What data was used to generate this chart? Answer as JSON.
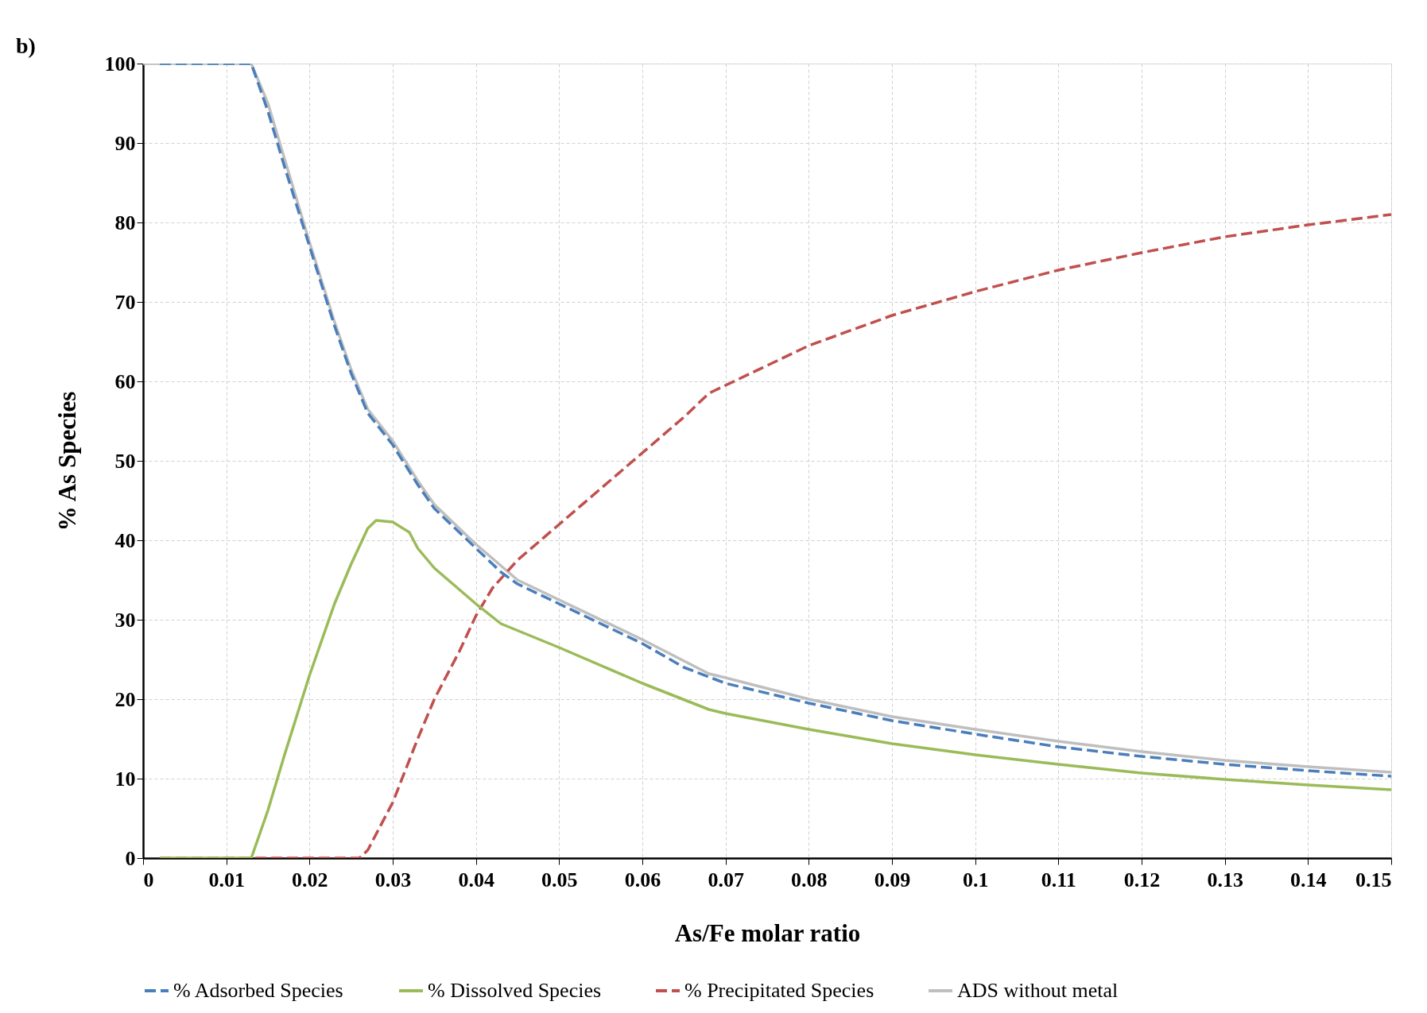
{
  "chart_data": {
    "type": "line",
    "xlabel": "As/Fe molar ratio",
    "ylabel": "% As Species",
    "annotations": [
      "b)"
    ],
    "xlim": [
      0,
      0.15
    ],
    "ylim": [
      0,
      100
    ],
    "xticks": [
      0,
      0.01,
      0.02,
      0.03,
      0.04,
      0.05,
      0.06,
      0.07,
      0.08,
      0.09,
      0.1,
      0.11,
      0.12,
      0.13,
      0.14,
      0.15
    ],
    "yticks": [
      0,
      10,
      20,
      30,
      40,
      50,
      60,
      70,
      80,
      90,
      100
    ],
    "grid": true,
    "legend": "bottom",
    "marker": "none",
    "series": [
      {
        "name": "% Adsorbed Species",
        "color": "#4a7ebb",
        "line_style": "dashed",
        "x": [
          0.002,
          0.013,
          0.015,
          0.017,
          0.02,
          0.023,
          0.025,
          0.027,
          0.03,
          0.033,
          0.035,
          0.04,
          0.043,
          0.045,
          0.05,
          0.055,
          0.06,
          0.065,
          0.07,
          0.08,
          0.09,
          0.1,
          0.11,
          0.12,
          0.13,
          0.14,
          0.15
        ],
        "values": [
          100,
          100,
          94,
          87,
          77,
          67,
          61,
          56,
          52,
          47,
          44,
          39,
          36,
          34.5,
          32,
          29.5,
          27,
          24,
          22,
          19.5,
          17.3,
          15.6,
          14,
          12.8,
          11.8,
          11,
          10.3
        ]
      },
      {
        "name": "% Dissolved Species",
        "color": "#9bbb59",
        "line_style": "solid",
        "x": [
          0.002,
          0.013,
          0.015,
          0.017,
          0.02,
          0.023,
          0.025,
          0.027,
          0.028,
          0.03,
          0.032,
          0.033,
          0.035,
          0.04,
          0.043,
          0.05,
          0.06,
          0.068,
          0.07,
          0.08,
          0.09,
          0.1,
          0.11,
          0.12,
          0.13,
          0.14,
          0.15
        ],
        "values": [
          0,
          0,
          6,
          13,
          23,
          32,
          37,
          41.5,
          42.5,
          42.3,
          41,
          39,
          36.5,
          32,
          29.5,
          26.5,
          22,
          18.7,
          18.2,
          16.2,
          14.4,
          13,
          11.8,
          10.7,
          9.9,
          9.2,
          8.6
        ]
      },
      {
        "name": "% Precipitated Species",
        "color": "#c0504d",
        "line_style": "dashed",
        "x": [
          0.002,
          0.026,
          0.027,
          0.03,
          0.033,
          0.035,
          0.038,
          0.04,
          0.042,
          0.045,
          0.05,
          0.055,
          0.06,
          0.065,
          0.068,
          0.07,
          0.08,
          0.09,
          0.1,
          0.11,
          0.12,
          0.13,
          0.14,
          0.15
        ],
        "values": [
          0,
          0,
          1,
          7,
          15,
          20,
          26,
          30.5,
          34,
          37.5,
          42,
          46.5,
          51,
          55.5,
          58.5,
          59.5,
          64.5,
          68.3,
          71.3,
          74,
          76.2,
          78.2,
          79.7,
          81
        ]
      },
      {
        "name": "ADS without metal",
        "color": "#bfbfbf",
        "line_style": "solid",
        "x": [
          0,
          0.013,
          0.015,
          0.017,
          0.02,
          0.023,
          0.025,
          0.027,
          0.03,
          0.033,
          0.035,
          0.04,
          0.045,
          0.05,
          0.06,
          0.068,
          0.07,
          0.08,
          0.09,
          0.1,
          0.11,
          0.12,
          0.13,
          0.14,
          0.15
        ],
        "values": [
          100,
          100,
          95,
          88,
          77.5,
          67.5,
          61.5,
          56.5,
          52.5,
          47.5,
          44.5,
          39.5,
          35,
          32.5,
          27.5,
          23.2,
          22.7,
          20,
          17.8,
          16.2,
          14.7,
          13.4,
          12.3,
          11.5,
          10.8
        ]
      }
    ]
  }
}
